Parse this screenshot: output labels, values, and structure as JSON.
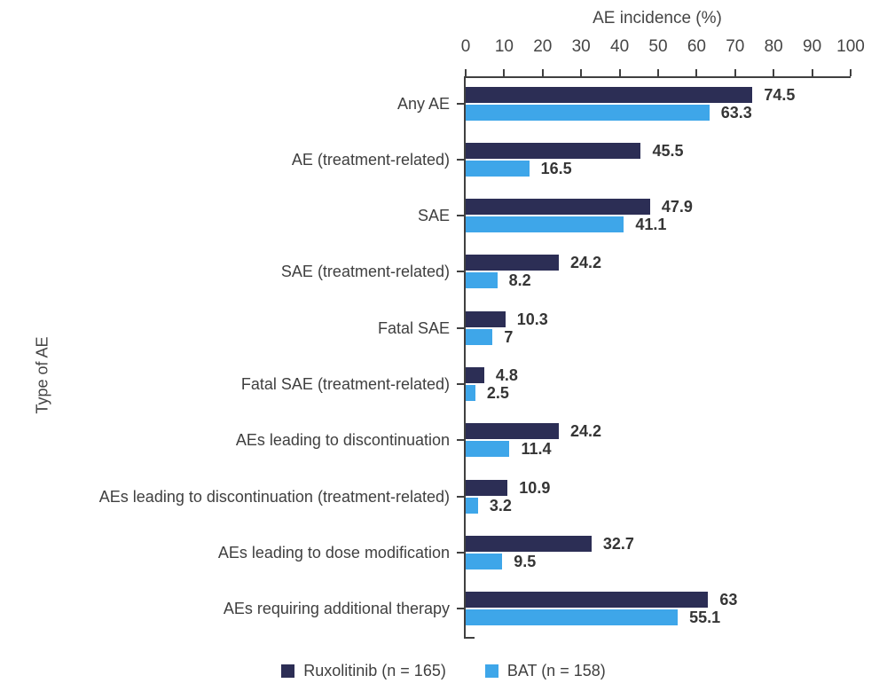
{
  "chart_data": {
    "type": "bar",
    "orientation": "horizontal",
    "xlabel": "AE incidence (%)",
    "ylabel": "Type of AE",
    "xlim": [
      0,
      100
    ],
    "x_ticks": [
      0,
      10,
      20,
      30,
      40,
      50,
      60,
      70,
      80,
      90,
      100
    ],
    "grid": false,
    "legend_position": "bottom",
    "categories": [
      "Any AE",
      "AE (treatment-related)",
      "SAE",
      "SAE (treatment-related)",
      "Fatal SAE",
      "Fatal SAE (treatment-related)",
      "AEs leading to discontinuation",
      "AEs leading to discontinuation (treatment-related)",
      "AEs leading to dose modification",
      "AEs requiring additional therapy"
    ],
    "series": [
      {
        "name": "Ruxolitinib (n = 165)",
        "color": "#2c2e55",
        "values": [
          74.5,
          45.5,
          47.9,
          24.2,
          10.3,
          4.8,
          24.2,
          10.9,
          32.7,
          63
        ],
        "labels": [
          "74.5",
          "45.5",
          "47.9",
          "24.2",
          "10.3",
          "4.8",
          "24.2",
          "10.9",
          "32.7",
          "63"
        ]
      },
      {
        "name": "BAT (n = 158)",
        "color": "#3ea6e9",
        "values": [
          63.3,
          16.5,
          41.1,
          8.2,
          7,
          2.5,
          11.4,
          3.2,
          9.5,
          55.1
        ],
        "labels": [
          "63.3",
          "16.5",
          "41.1",
          "8.2",
          "7",
          "2.5",
          "11.4",
          "3.2",
          "9.5",
          "55.1"
        ]
      }
    ]
  },
  "colors": {
    "axis": "#404040",
    "category_text": "#3f3f3f",
    "value_text": "#353535",
    "tick_text": "#454545"
  }
}
